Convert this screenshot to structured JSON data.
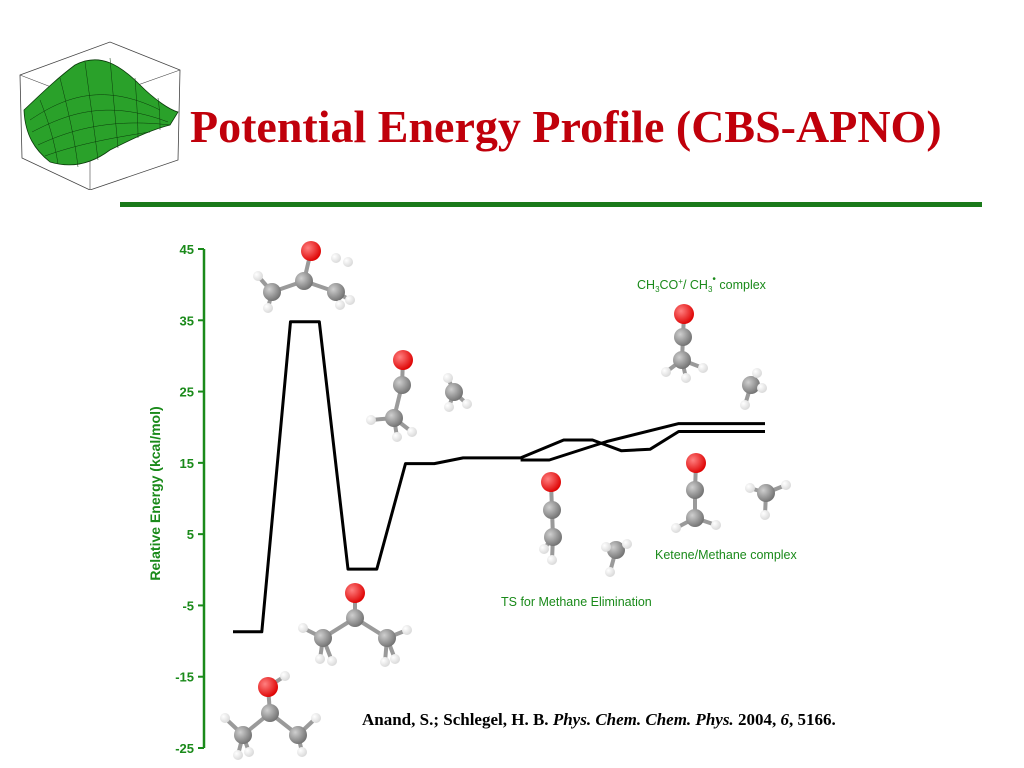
{
  "slide": {
    "title": "Potential Energy Profile (CBS-APNO)",
    "colors": {
      "title": "#c0000b",
      "rule": "#1a7a1a",
      "axis": "#1a8a1a",
      "profile": "#000000",
      "oxygen": "#dd0000",
      "carbon": "#707070",
      "hydrogen": "#d8d8d8"
    },
    "citation": {
      "authors": "Anand, S.; Schlegel, H. B.",
      "journal": "Phys. Chem. Chem. Phys.",
      "year": "2004,",
      "volume": "6",
      "pages": ", 5166."
    }
  },
  "chart_data": {
    "type": "line",
    "title": "",
    "xlabel": "",
    "ylabel": "Relative Energy (kcal/mol)",
    "ylim": [
      -25,
      45
    ],
    "yticks": [
      "45",
      "35",
      "25",
      "15",
      "5",
      "-5",
      "-15",
      "-25"
    ],
    "ytick_values": [
      45,
      35,
      25,
      15,
      5,
      -5,
      -15,
      -25
    ],
    "grid": false,
    "series": [
      {
        "label": "pathway to CH3CO+/CH3 complex",
        "values": [
          {
            "x": 0,
            "y": -8.7
          },
          {
            "x": 0.8,
            "y": -8.7
          },
          {
            "x": 1.6,
            "y": 34.8
          },
          {
            "x": 2.4,
            "y": 34.8
          },
          {
            "x": 3.2,
            "y": 0.1
          },
          {
            "x": 4.0,
            "y": 0.1
          },
          {
            "x": 4.8,
            "y": 14.9
          },
          {
            "x": 5.6,
            "y": 14.9
          },
          {
            "x": 6.4,
            "y": 15.7
          },
          {
            "x": 8.0,
            "y": 15.7
          },
          {
            "x": 9.2,
            "y": 18.2
          },
          {
            "x": 10.0,
            "y": 18.2
          },
          {
            "x": 10.8,
            "y": 16.7
          },
          {
            "x": 11.6,
            "y": 16.9
          },
          {
            "x": 12.4,
            "y": 19.4
          },
          {
            "x": 14.8,
            "y": 19.4
          }
        ]
      },
      {
        "label": "pathway to ketene/methane complex",
        "values": [
          {
            "x": 8.0,
            "y": 15.4
          },
          {
            "x": 8.8,
            "y": 15.4
          },
          {
            "x": 10.4,
            "y": 18.0
          },
          {
            "x": 12.4,
            "y": 20.5
          },
          {
            "x": 14.8,
            "y": 20.5
          }
        ]
      }
    ],
    "annotations": {
      "complex_top": {
        "parts": [
          "CH",
          "3",
          "CO",
          "+",
          "/ CH",
          "3",
          "•",
          " complex"
        ]
      },
      "ketene": "Ketene/Methane complex",
      "ts": "TS for Methane Elimination"
    }
  }
}
